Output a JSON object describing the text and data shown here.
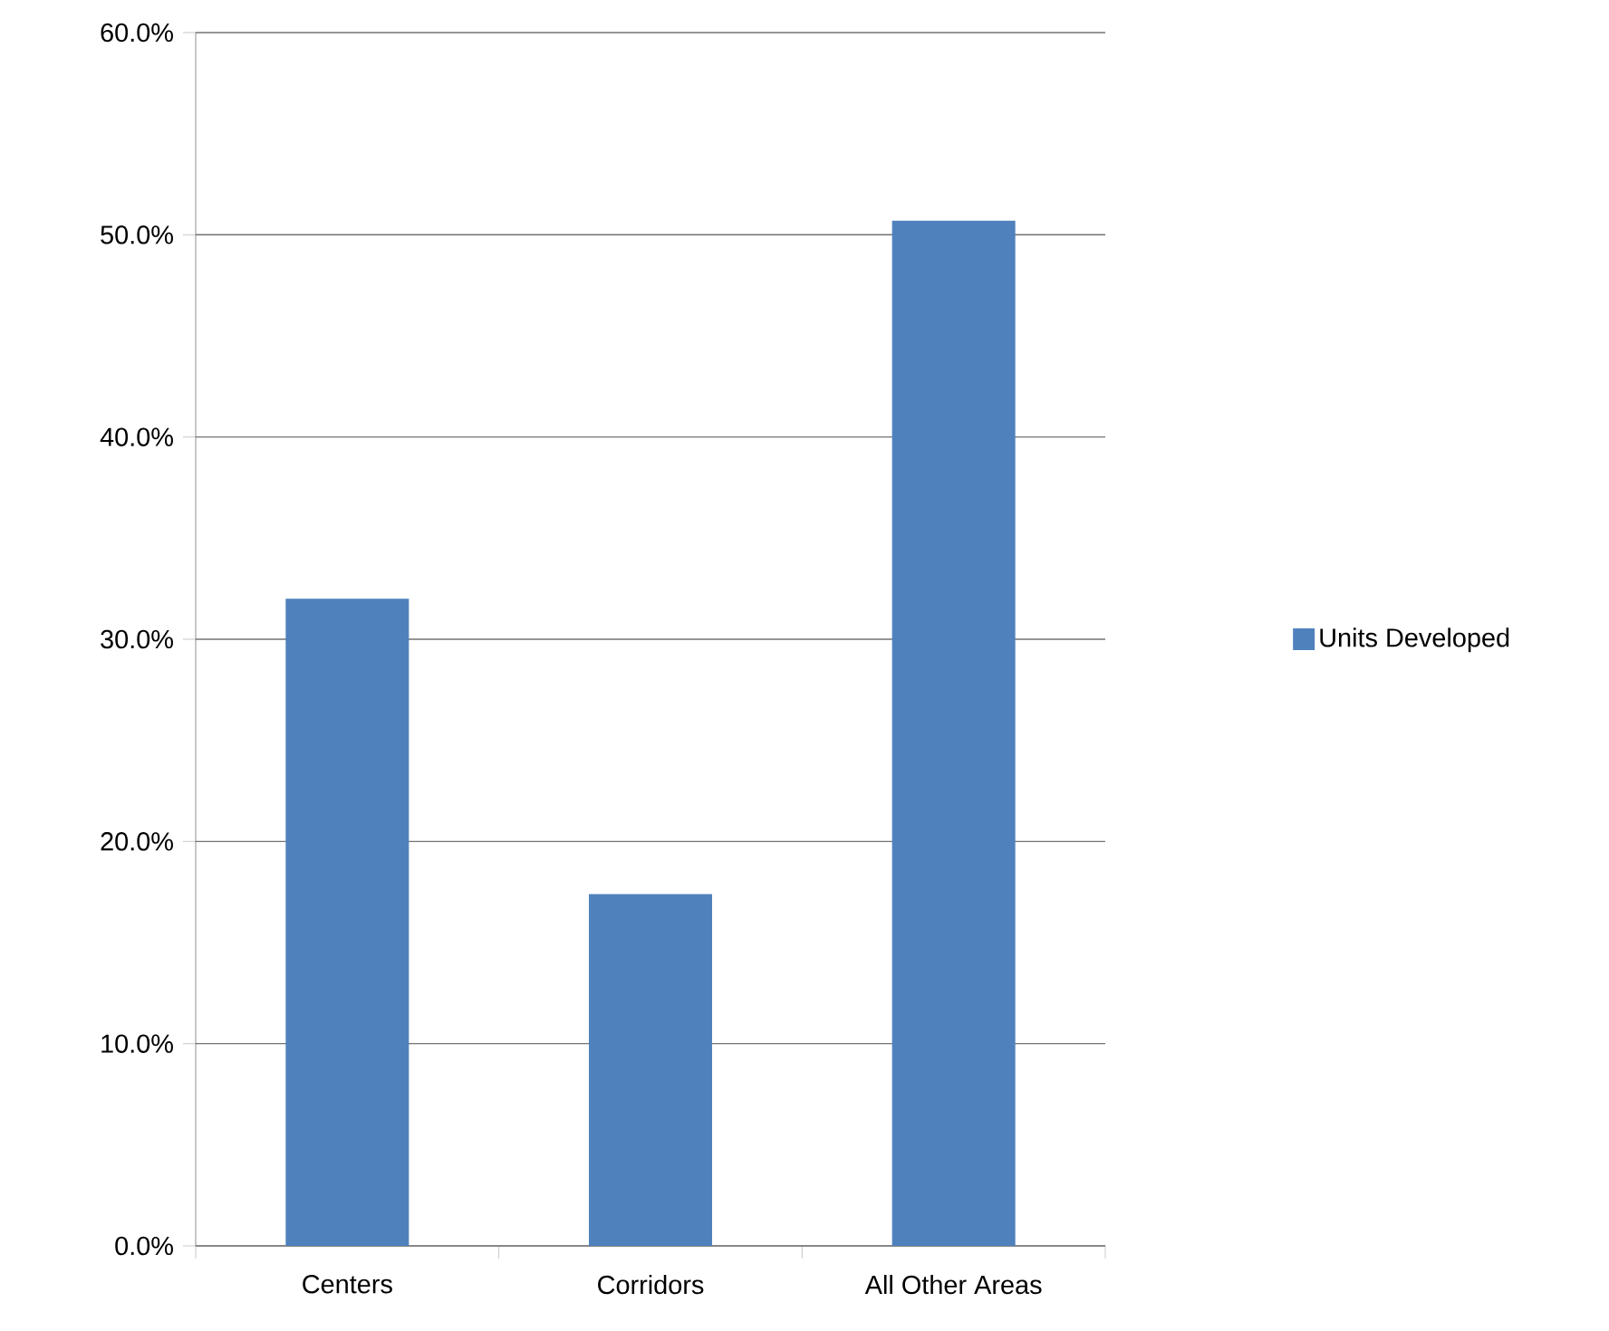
{
  "chart_data": {
    "type": "bar",
    "categories": [
      "Centers",
      "Corridors",
      "All Other Areas"
    ],
    "series": [
      {
        "name": "Units Developed",
        "color": "#4f81bd",
        "values": [
          32.0,
          17.4,
          50.7
        ]
      }
    ],
    "ylim": [
      0,
      60
    ],
    "yticks": [
      {
        "value": 0,
        "label": "0.0%"
      },
      {
        "value": 10,
        "label": "10.0%"
      },
      {
        "value": 20,
        "label": "20.0%"
      },
      {
        "value": 30,
        "label": "30.0%"
      },
      {
        "value": 40,
        "label": "40.0%"
      },
      {
        "value": 50,
        "label": "50.0%"
      },
      {
        "value": 60,
        "label": "60.0%"
      }
    ],
    "grid": "y",
    "legend": "right"
  }
}
